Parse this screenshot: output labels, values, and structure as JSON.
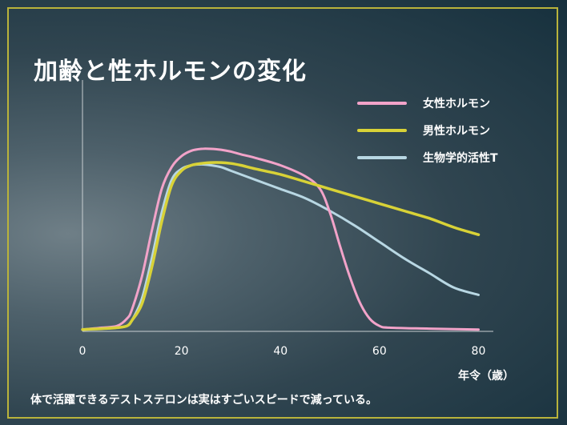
{
  "slide": {
    "title": "加齢と性ホルモンの変化",
    "caption": "体で活躍できるテストステロンは実はすごいスピードで減っている。",
    "x_unit_label": "年令（歳）",
    "frame_color": "#b9b33b"
  },
  "chart_data": {
    "type": "line",
    "title": "加齢と性ホルモンの変化",
    "xlabel": "年令（歳）",
    "ylabel": "",
    "xlim": [
      0,
      83
    ],
    "ylim": [
      0,
      100
    ],
    "xticks": [
      0,
      20,
      40,
      60,
      80
    ],
    "grid": false,
    "legend_position": "top-right",
    "series": [
      {
        "name": "女性ホルモン",
        "color": "#f2a3c9",
        "x": [
          0,
          4,
          7,
          9,
          10,
          12,
          14,
          16,
          18,
          20,
          22,
          24,
          26,
          28,
          30,
          32,
          35,
          40,
          45,
          48,
          50,
          52,
          54,
          56,
          58,
          60,
          62,
          70,
          80
        ],
        "y": [
          1,
          2,
          3,
          7,
          12,
          30,
          55,
          78,
          90,
          96,
          99,
          100,
          100,
          99.5,
          98.5,
          97,
          95,
          91,
          85,
          78,
          65,
          47,
          30,
          16,
          7,
          3,
          2,
          1.5,
          1
        ]
      },
      {
        "name": "男性ホルモン",
        "color": "#d8d237",
        "x": [
          0,
          4,
          7,
          9,
          10,
          12,
          14,
          16,
          18,
          20,
          22,
          24,
          26,
          28,
          30,
          32,
          35,
          40,
          45,
          50,
          55,
          60,
          65,
          70,
          75,
          80
        ],
        "y": [
          1,
          1.5,
          2,
          3,
          6,
          15,
          35,
          60,
          80,
          88,
          91,
          92,
          92.5,
          92.5,
          92,
          91,
          89,
          86,
          82,
          78,
          74,
          70,
          66,
          62,
          57,
          53
        ]
      },
      {
        "name": "生物学的活性T",
        "color": "#b8d7e3",
        "x": [
          0,
          4,
          7,
          9,
          10,
          12,
          14,
          16,
          18,
          20,
          22,
          24,
          26,
          28,
          30,
          35,
          40,
          45,
          50,
          55,
          60,
          65,
          70,
          75,
          80
        ],
        "y": [
          1,
          1.5,
          2,
          3,
          6,
          18,
          40,
          65,
          83,
          89,
          91,
          91.5,
          91,
          90,
          88,
          83,
          78,
          73,
          66,
          58,
          49,
          40,
          32,
          24,
          20
        ]
      }
    ]
  }
}
